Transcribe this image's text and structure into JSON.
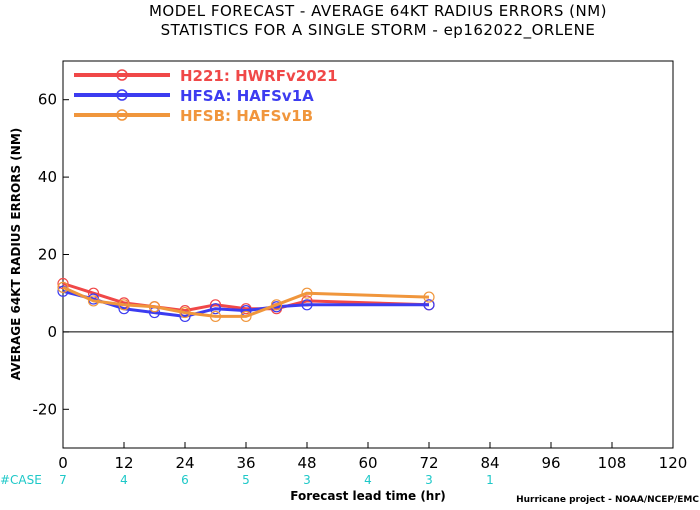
{
  "chart_data": {
    "type": "line",
    "title_line1": "MODEL FORECAST - AVERAGE 64KT RADIUS ERRORS (NM)",
    "title_line2": "STATISTICS FOR A SINGLE STORM - ep162022_ORLENE",
    "ylabel": "AVERAGE 64KT RADIUS ERRORS (NM)",
    "xlabel": "Forecast lead time (hr)",
    "credit": "Hurricane project - NOAA/NCEP/EMC",
    "case_header": "#CASE",
    "xlim": [
      0,
      120
    ],
    "ylim": [
      -30,
      70
    ],
    "x_ticks": [
      0,
      12,
      24,
      36,
      48,
      60,
      72,
      84,
      96,
      108,
      120
    ],
    "y_ticks": [
      -20,
      0,
      20,
      40,
      60
    ],
    "case_counts": [
      {
        "x": 0,
        "n": "7"
      },
      {
        "x": 12,
        "n": "4"
      },
      {
        "x": 24,
        "n": "6"
      },
      {
        "x": 36,
        "n": "5"
      },
      {
        "x": 48,
        "n": "3"
      },
      {
        "x": 60,
        "n": "4"
      },
      {
        "x": 72,
        "n": "3"
      },
      {
        "x": 84,
        "n": "1"
      }
    ],
    "zero_line": 0,
    "series": [
      {
        "name": "H221: HWRFv2021",
        "color": "#f04848",
        "x": [
          0,
          6,
          12,
          18,
          24,
          30,
          36,
          42,
          48,
          72
        ],
        "y": [
          12.5,
          10,
          7.5,
          6.5,
          5.5,
          7,
          6,
          6,
          8,
          7
        ]
      },
      {
        "name": "HFSA: HAFSv1A",
        "color": "#3c3cf0",
        "x": [
          0,
          6,
          12,
          18,
          24,
          30,
          36,
          42,
          48,
          72
        ],
        "y": [
          10.5,
          8.5,
          6,
          5,
          4,
          6,
          5.5,
          6.5,
          7,
          7
        ]
      },
      {
        "name": "HFSB: HAFSv1B",
        "color": "#f0963c",
        "x": [
          0,
          6,
          12,
          18,
          24,
          30,
          36,
          42,
          48,
          72
        ],
        "y": [
          11.5,
          8,
          7,
          6.5,
          5,
          4,
          4,
          7,
          10,
          9
        ]
      }
    ]
  }
}
